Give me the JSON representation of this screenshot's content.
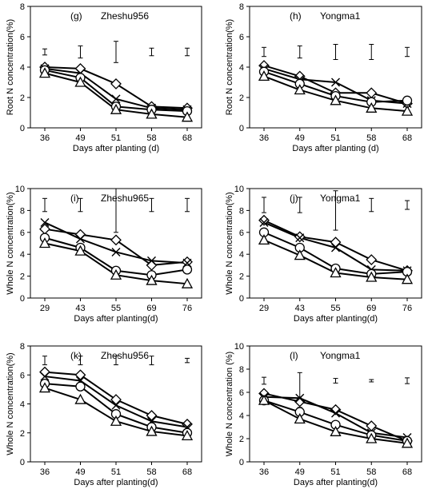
{
  "chart_data": [
    {
      "type": "line",
      "panel_label": "(g)",
      "title": "Zheshu956",
      "ylabel": "Root N concentration(%)",
      "xlabel": "Days after planting (d)",
      "categories": [
        "36",
        "49",
        "51",
        "58",
        "68"
      ],
      "ylim": [
        0,
        8
      ],
      "yticks": [
        0,
        2,
        4,
        6,
        8
      ],
      "series": [
        {
          "marker": "diamond",
          "values": [
            4.0,
            3.9,
            2.9,
            1.4,
            1.3
          ]
        },
        {
          "marker": "cross",
          "values": [
            3.9,
            3.6,
            1.9,
            1.3,
            1.2
          ]
        },
        {
          "marker": "circle",
          "values": [
            3.8,
            3.3,
            1.4,
            1.2,
            1.1
          ]
        },
        {
          "marker": "triangle",
          "values": [
            3.6,
            3.0,
            1.2,
            0.9,
            0.7
          ]
        }
      ],
      "error_bars": [
        {
          "center": 5.0,
          "half": 0.2
        },
        {
          "center": 5.0,
          "half": 0.4
        },
        {
          "center": 5.0,
          "half": 0.7
        },
        {
          "center": 5.0,
          "half": 0.25
        },
        {
          "center": 5.0,
          "half": 0.25
        }
      ]
    },
    {
      "type": "line",
      "panel_label": "(h)",
      "title": "Yongma1",
      "ylabel": "Root N concentration(%)",
      "xlabel": "Days after planting (d)",
      "categories": [
        "36",
        "49",
        "51",
        "58",
        "68"
      ],
      "ylim": [
        0,
        8
      ],
      "yticks": [
        0,
        2,
        4,
        6,
        8
      ],
      "series": [
        {
          "marker": "diamond",
          "values": [
            4.1,
            3.4,
            2.3,
            2.3,
            1.6
          ]
        },
        {
          "marker": "cross",
          "values": [
            3.9,
            3.2,
            3.0,
            1.8,
            1.6
          ]
        },
        {
          "marker": "circle",
          "values": [
            3.7,
            2.9,
            2.1,
            1.7,
            1.8
          ]
        },
        {
          "marker": "triangle",
          "values": [
            3.4,
            2.5,
            1.8,
            1.3,
            1.1
          ]
        }
      ],
      "error_bars": [
        {
          "center": 5.0,
          "half": 0.3
        },
        {
          "center": 5.0,
          "half": 0.4
        },
        {
          "center": 5.0,
          "half": 0.5
        },
        {
          "center": 5.0,
          "half": 0.5
        },
        {
          "center": 5.0,
          "half": 0.3
        }
      ]
    },
    {
      "type": "line",
      "panel_label": "(i)",
      "title": "Zheshu965",
      "ylabel": "Whole N concentration(%)",
      "xlabel": "Days after planting(d)",
      "categories": [
        "29",
        "43",
        "55",
        "69",
        "76"
      ],
      "ylim": [
        0,
        10
      ],
      "yticks": [
        0,
        2,
        4,
        6,
        8,
        10
      ],
      "series": [
        {
          "marker": "diamond",
          "values": [
            6.3,
            5.8,
            5.3,
            3.0,
            3.3
          ]
        },
        {
          "marker": "cross",
          "values": [
            6.9,
            5.4,
            4.2,
            3.4,
            3.2
          ]
        },
        {
          "marker": "circle",
          "values": [
            5.5,
            4.6,
            2.5,
            2.1,
            2.6
          ]
        },
        {
          "marker": "triangle",
          "values": [
            5.0,
            4.3,
            2.1,
            1.6,
            1.3
          ]
        }
      ],
      "error_bars": [
        {
          "center": 8.5,
          "half": 0.6
        },
        {
          "center": 8.5,
          "half": 0.6
        },
        {
          "center": 8.0,
          "half": 2.0
        },
        {
          "center": 8.5,
          "half": 0.6
        },
        {
          "center": 8.5,
          "half": 0.6
        }
      ]
    },
    {
      "type": "line",
      "panel_label": "(j)",
      "title": "Yongma1",
      "ylabel": "Whole N concentration(%)",
      "xlabel": "Days after planting(d)",
      "categories": [
        "29",
        "43",
        "55",
        "69",
        "76"
      ],
      "ylim": [
        0,
        10
      ],
      "yticks": [
        0,
        2,
        4,
        6,
        8,
        10
      ],
      "series": [
        {
          "marker": "diamond",
          "values": [
            7.1,
            5.6,
            5.1,
            3.5,
            2.5
          ]
        },
        {
          "marker": "cross",
          "values": [
            6.9,
            5.5,
            4.6,
            2.6,
            2.5
          ]
        },
        {
          "marker": "circle",
          "values": [
            6.0,
            4.6,
            2.7,
            2.2,
            2.4
          ]
        },
        {
          "marker": "triangle",
          "values": [
            5.3,
            3.9,
            2.3,
            1.9,
            1.7
          ]
        }
      ],
      "error_bars": [
        {
          "center": 8.5,
          "half": 0.7
        },
        {
          "center": 8.5,
          "half": 0.7
        },
        {
          "center": 8.0,
          "half": 1.8
        },
        {
          "center": 8.5,
          "half": 0.6
        },
        {
          "center": 8.5,
          "half": 0.4
        }
      ]
    },
    {
      "type": "line",
      "panel_label": "(k)",
      "title": "Zheshu956",
      "ylabel": "Whole N concentration(%)",
      "xlabel": "Days after planting(d)",
      "categories": [
        "36",
        "49",
        "51",
        "58",
        "68"
      ],
      "ylim": [
        0,
        8
      ],
      "yticks": [
        0,
        2,
        4,
        6,
        8
      ],
      "series": [
        {
          "marker": "diamond",
          "values": [
            6.2,
            6.0,
            4.3,
            3.2,
            2.6
          ]
        },
        {
          "marker": "cross",
          "values": [
            5.9,
            5.6,
            3.9,
            2.8,
            2.4
          ]
        },
        {
          "marker": "circle",
          "values": [
            5.4,
            5.2,
            3.3,
            2.4,
            2.0
          ]
        },
        {
          "marker": "triangle",
          "values": [
            5.1,
            4.3,
            2.8,
            2.1,
            1.8
          ]
        }
      ],
      "error_bars": [
        {
          "center": 7.0,
          "half": 0.3
        },
        {
          "center": 7.0,
          "half": 0.3
        },
        {
          "center": 7.0,
          "half": 0.3
        },
        {
          "center": 7.0,
          "half": 0.3
        },
        {
          "center": 7.0,
          "half": 0.15
        }
      ]
    },
    {
      "type": "line",
      "panel_label": "(l)",
      "title": "Yongma1",
      "ylabel": "Whole N concentration (%)",
      "xlabel": "Days after planting(d)",
      "categories": [
        "36",
        "49",
        "51",
        "58",
        "68"
      ],
      "ylim": [
        0,
        10
      ],
      "yticks": [
        0,
        2,
        4,
        6,
        8,
        10
      ],
      "series": [
        {
          "marker": "diamond",
          "values": [
            5.9,
            5.2,
            4.5,
            3.1,
            1.8
          ]
        },
        {
          "marker": "cross",
          "values": [
            5.6,
            5.5,
            4.2,
            2.5,
            2.1
          ]
        },
        {
          "marker": "circle",
          "values": [
            5.3,
            4.3,
            3.2,
            2.3,
            1.8
          ]
        },
        {
          "marker": "triangle",
          "values": [
            5.3,
            3.7,
            2.6,
            2.0,
            1.6
          ]
        }
      ],
      "error_bars": [
        {
          "center": 7.0,
          "half": 0.3
        },
        {
          "center": 6.2,
          "half": 1.5
        },
        {
          "center": 7.0,
          "half": 0.2
        },
        {
          "center": 7.0,
          "half": 0.1
        },
        {
          "center": 7.0,
          "half": 0.25
        }
      ]
    }
  ]
}
